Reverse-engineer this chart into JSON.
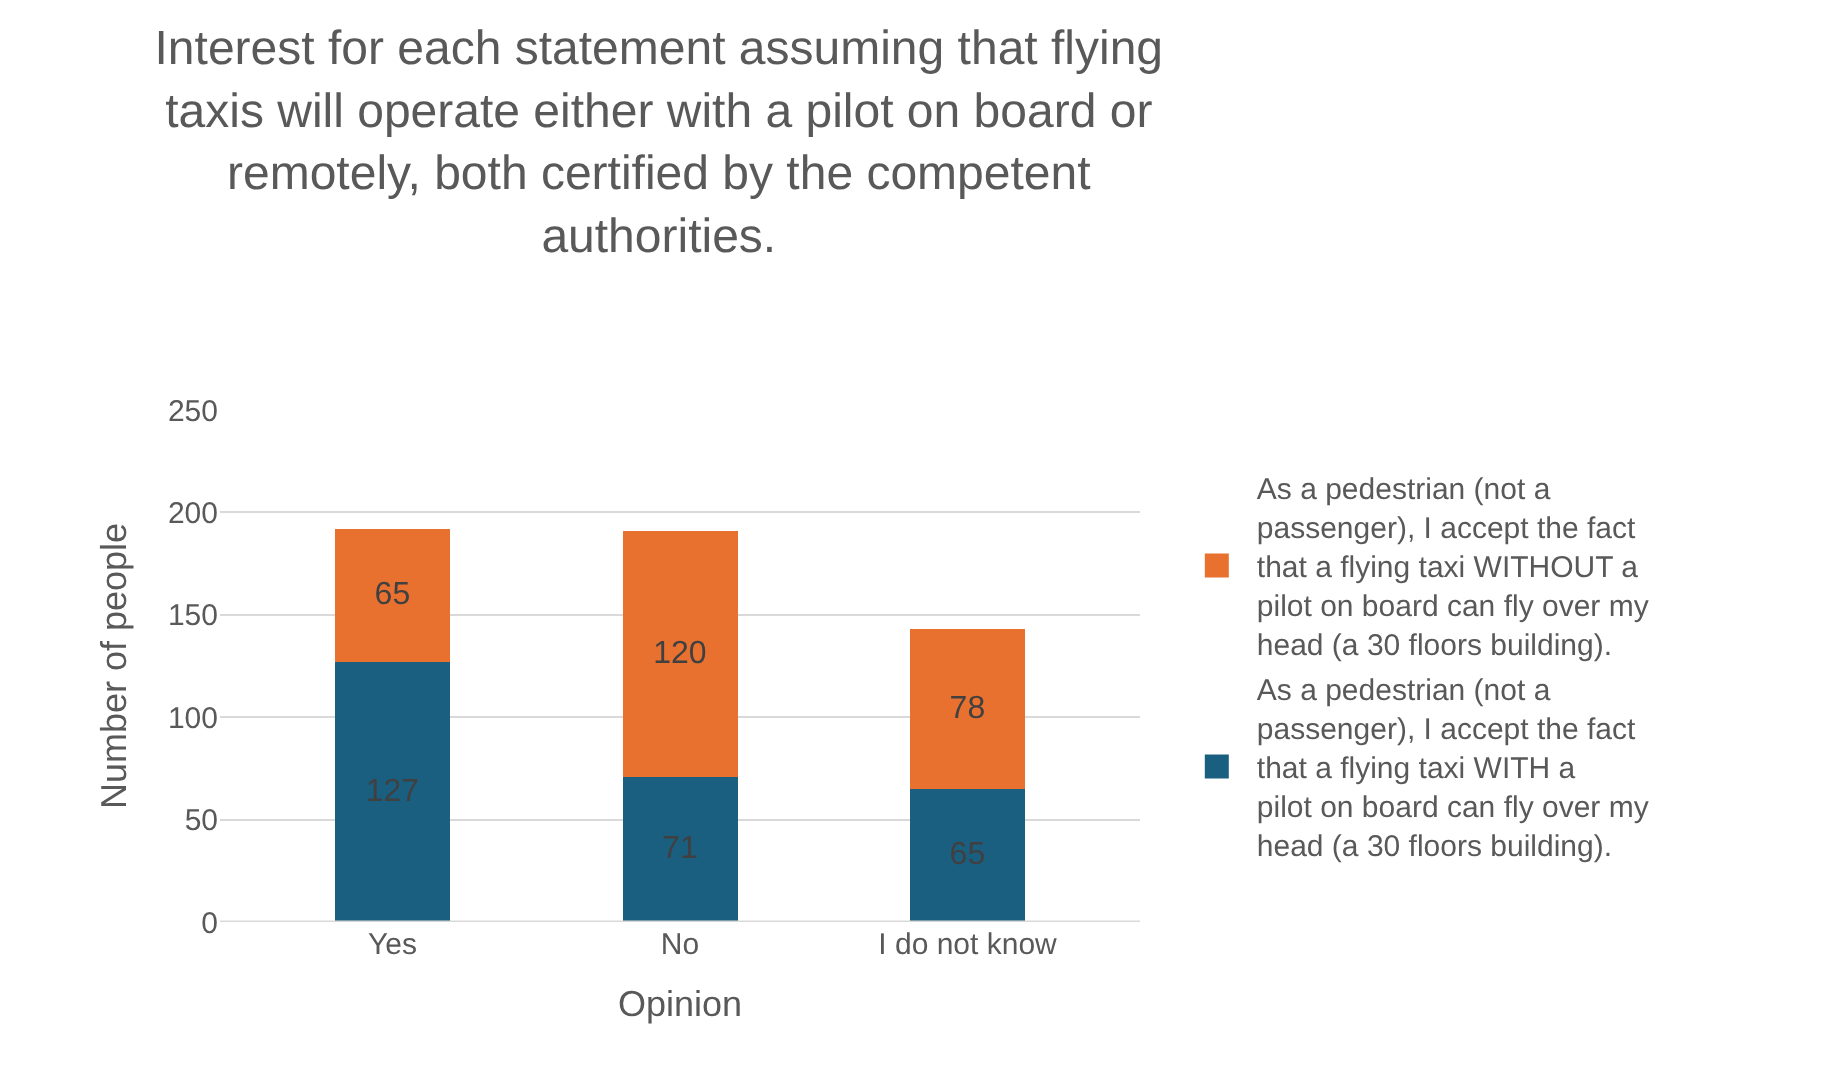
{
  "chart_data": {
    "type": "bar",
    "stacked": true,
    "title": "Interest for each statement assuming that flying taxis will operate either with a pilot on board or remotely, both certified by the competent authorities.",
    "xlabel": "Opinion",
    "ylabel": "Number of people",
    "categories": [
      "Yes",
      "No",
      "I do not know"
    ],
    "series": [
      {
        "name": "As a pedestrian (not a passenger), I accept the fact that a flying taxi WITH a pilot on board can fly over my head (a 30 floors building).",
        "color": "#1a5e80",
        "values": [
          127,
          71,
          65
        ]
      },
      {
        "name": "As a pedestrian (not a passenger), I accept the fact that a flying taxi WITHOUT a pilot on board can fly over my head (a 30 floors building).",
        "color": "#e87130",
        "values": [
          65,
          120,
          78
        ]
      }
    ],
    "ylim": [
      0,
      250
    ],
    "yticks": [
      0,
      50,
      100,
      150,
      200,
      250
    ],
    "grid": "y",
    "legend": "right",
    "data_labels": true
  }
}
